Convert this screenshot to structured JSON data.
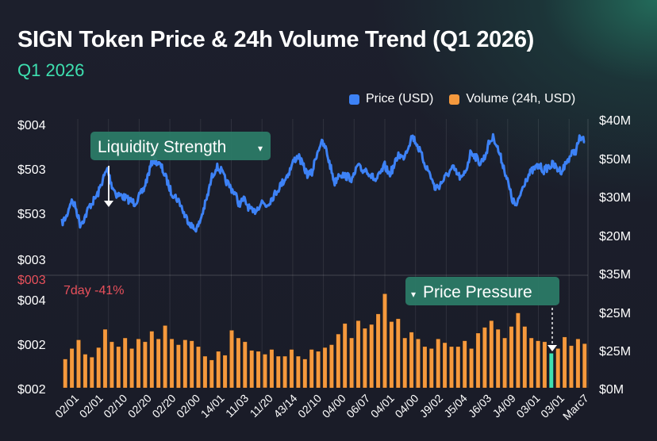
{
  "header": {
    "title": "SIGN Token Price & 24h Volume Trend (Q1 2026)",
    "subtitle": "Q1 2026"
  },
  "legend": [
    {
      "label": "Price (USD)",
      "color": "#3d82f6",
      "icon": "square-swatch"
    },
    {
      "label": "Volume (24h, USD)",
      "color": "#f5993d",
      "icon": "square-swatch"
    }
  ],
  "chart_data": {
    "type": "line+bar",
    "title": "SIGN Token Price & 24h Volume Trend (Q1 2026)",
    "subtitle": "Q1 2026",
    "grid": true,
    "legend_position": "top-right",
    "left_axis_top_panel_ticks": [
      "$004",
      "$503",
      "$503",
      "$003"
    ],
    "left_axis_divider_tick": "$003",
    "left_axis_bottom_panel_ticks": [
      "$004",
      "$002",
      "$002"
    ],
    "right_axis_ticks": [
      "$40M",
      "$50M",
      "$30M",
      "$20M",
      "$35M",
      "$25M",
      "$25M",
      "$0M"
    ],
    "x_tick_labels": [
      "02/01",
      "02/01",
      "02/10",
      "02/20",
      "02/20",
      "02/00",
      "14/01",
      "11/03",
      "11/20",
      "43/14",
      "02/10",
      "04/00",
      "06/07",
      "04/01",
      "04/00",
      "J9/02",
      "J5/04",
      "J6/03",
      "J4/09",
      "03/01",
      "03/01",
      "Marc7"
    ],
    "price_series": {
      "name": "Price (USD)",
      "color": "#3d82f6",
      "scale_note": "normalized 0-1 within upper panel (axis labels ambiguous)",
      "ylim": [
        0,
        1
      ],
      "values": [
        0.28,
        0.33,
        0.46,
        0.41,
        0.27,
        0.32,
        0.41,
        0.46,
        0.52,
        0.63,
        0.71,
        0.58,
        0.51,
        0.5,
        0.48,
        0.46,
        0.44,
        0.49,
        0.55,
        0.67,
        0.79,
        0.77,
        0.72,
        0.63,
        0.53,
        0.49,
        0.44,
        0.34,
        0.29,
        0.23,
        0.25,
        0.37,
        0.49,
        0.65,
        0.73,
        0.7,
        0.62,
        0.57,
        0.52,
        0.43,
        0.47,
        0.41,
        0.36,
        0.4,
        0.45,
        0.42,
        0.47,
        0.52,
        0.58,
        0.63,
        0.69,
        0.78,
        0.82,
        0.74,
        0.67,
        0.68,
        0.83,
        0.93,
        0.88,
        0.74,
        0.6,
        0.68,
        0.66,
        0.65,
        0.63,
        0.74,
        0.7,
        0.71,
        0.66,
        0.62,
        0.67,
        0.74,
        0.67,
        0.73,
        0.83,
        0.8,
        0.88,
        0.98,
        0.92,
        0.83,
        0.74,
        0.67,
        0.56,
        0.58,
        0.63,
        0.68,
        0.72,
        0.67,
        0.63,
        0.72,
        0.86,
        0.81,
        0.76,
        0.81,
        0.93,
        0.97,
        0.86,
        0.75,
        0.62,
        0.47,
        0.41,
        0.53,
        0.63,
        0.68,
        0.72,
        0.74,
        0.7,
        0.73,
        0.75,
        0.71,
        0.7,
        0.77,
        0.83,
        0.86,
        0.97,
        0.93
      ]
    },
    "volume_series": {
      "name": "Volume (24h, USD)",
      "color": "#f5993d",
      "highlight_color": "#3ee0b0",
      "highlight_index": 73,
      "scale_note": "normalized 0-1 within lower panel",
      "ylim": [
        0,
        1
      ],
      "values": [
        0.3,
        0.41,
        0.5,
        0.35,
        0.32,
        0.42,
        0.61,
        0.48,
        0.43,
        0.52,
        0.41,
        0.51,
        0.48,
        0.59,
        0.51,
        0.65,
        0.51,
        0.45,
        0.5,
        0.49,
        0.43,
        0.33,
        0.29,
        0.38,
        0.34,
        0.6,
        0.52,
        0.48,
        0.39,
        0.38,
        0.35,
        0.4,
        0.33,
        0.33,
        0.4,
        0.33,
        0.3,
        0.4,
        0.38,
        0.42,
        0.45,
        0.56,
        0.67,
        0.52,
        0.7,
        0.62,
        0.66,
        0.77,
        0.98,
        0.69,
        0.72,
        0.52,
        0.58,
        0.51,
        0.43,
        0.41,
        0.51,
        0.47,
        0.43,
        0.43,
        0.49,
        0.41,
        0.57,
        0.63,
        0.7,
        0.61,
        0.52,
        0.64,
        0.78,
        0.64,
        0.52,
        0.49,
        0.48,
        0.36,
        0.41,
        0.53,
        0.44,
        0.51,
        0.46
      ]
    },
    "annotations": [
      {
        "label": "Liquidity Strength",
        "marker": "▾",
        "marker_position": "end",
        "target_series": "price",
        "style": "solid-arrow"
      },
      {
        "label": "Price Pressure",
        "marker": "▾",
        "marker_position": "start",
        "target_series": "volume",
        "style": "dashed-arrow"
      }
    ],
    "change_label": {
      "text": "7day -41%",
      "color": "#e8505b"
    }
  }
}
